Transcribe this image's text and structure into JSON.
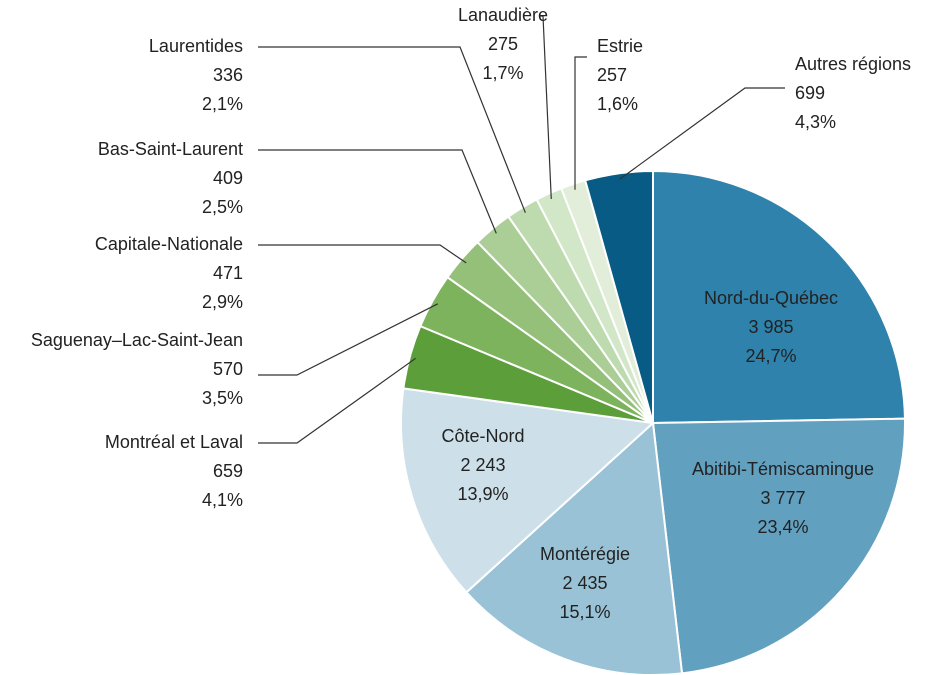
{
  "chart_data": {
    "type": "pie",
    "categories": [
      "Nord-du-Québec",
      "Abitibi-Témiscamingue",
      "Montérégie",
      "Côte-Nord",
      "Montréal et Laval",
      "Saguenay–Lac-Saint-Jean",
      "Capitale-Nationale",
      "Bas-Saint-Laurent",
      "Laurentides",
      "Lanaudière",
      "Estrie",
      "Autres régions"
    ],
    "values": [
      3985,
      3777,
      2435,
      2243,
      659,
      570,
      471,
      409,
      336,
      275,
      257,
      699
    ],
    "value_labels": [
      "3 985",
      "3 777",
      "2 435",
      "2 243",
      "659",
      "570",
      "471",
      "409",
      "336",
      "275",
      "257",
      "699"
    ],
    "percents": [
      24.7,
      23.4,
      15.1,
      13.9,
      4.1,
      3.5,
      2.9,
      2.5,
      2.1,
      1.7,
      1.6,
      4.3
    ],
    "percent_labels": [
      "24,7%",
      "23,4%",
      "15,1%",
      "13,9%",
      "4,1%",
      "3,5%",
      "2,9%",
      "2,5%",
      "2,1%",
      "1,7%",
      "1,6%",
      "4,3%"
    ],
    "colors": [
      "#2e82ac",
      "#62a0c0",
      "#9ac2d6",
      "#cde0ea",
      "#5b9e3a",
      "#7cb35c",
      "#94c07a",
      "#aace96",
      "#bedbb0",
      "#d2e6c8",
      "#e2eed9",
      "#075b85"
    ]
  }
}
